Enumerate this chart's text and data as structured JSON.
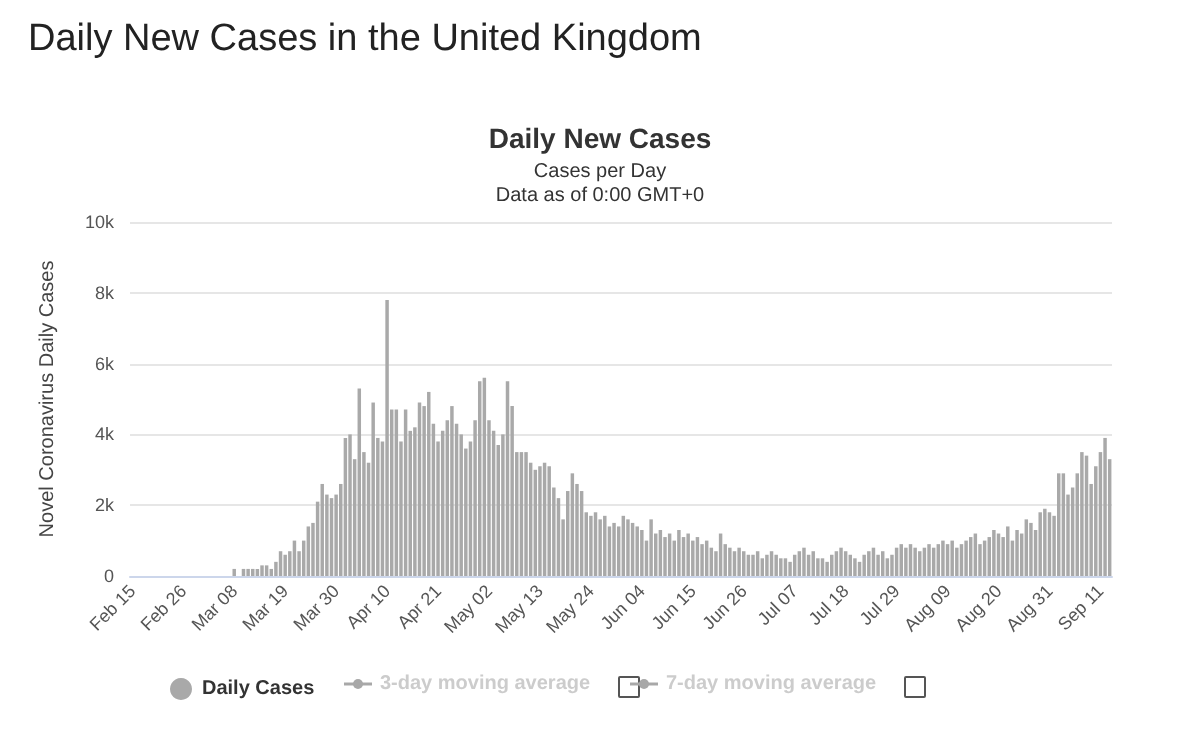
{
  "chart_data": {
    "type": "bar",
    "title": "Daily New Cases in the United Kingdom",
    "subtitle": "Daily New Cases",
    "annotations": [
      "Cases per Day",
      "Data as of 0:00 GMT+0",
      "3-day moving average",
      "7-day moving average"
    ],
    "ylabel": "Novel Coronavirus Daily Cases",
    "categories": [
      "Feb 15",
      null,
      null,
      null,
      null,
      null,
      null,
      null,
      null,
      null,
      null,
      "Feb 26",
      null,
      null,
      null,
      null,
      null,
      null,
      null,
      null,
      null,
      null,
      "Mar 08",
      null,
      null,
      null,
      null,
      null,
      null,
      null,
      null,
      null,
      null,
      "Mar 19",
      null,
      null,
      null,
      null,
      null,
      null,
      null,
      null,
      null,
      null,
      "Mar 30",
      null,
      null,
      null,
      null,
      null,
      null,
      null,
      null,
      null,
      null,
      "Apr 10",
      null,
      null,
      null,
      null,
      null,
      null,
      null,
      null,
      null,
      null,
      "Apr 21",
      null,
      null,
      null,
      null,
      null,
      null,
      null,
      null,
      null,
      null,
      "May 02",
      null,
      null,
      null,
      null,
      null,
      null,
      null,
      null,
      null,
      null,
      "May 13",
      null,
      null,
      null,
      null,
      null,
      null,
      null,
      null,
      null,
      null,
      "May 24",
      null,
      null,
      null,
      null,
      null,
      null,
      null,
      null,
      null,
      null,
      "Jun 04",
      null,
      null,
      null,
      null,
      null,
      null,
      null,
      null,
      null,
      null,
      "Jun 15",
      null,
      null,
      null,
      null,
      null,
      null,
      null,
      null,
      null,
      null,
      "Jun 26",
      null,
      null,
      null,
      null,
      null,
      null,
      null,
      null,
      null,
      null,
      "Jul 07",
      null,
      null,
      null,
      null,
      null,
      null,
      null,
      null,
      null,
      null,
      "Jul 18",
      null,
      null,
      null,
      null,
      null,
      null,
      null,
      null,
      null,
      null,
      "Jul 29",
      null,
      null,
      null,
      null,
      null,
      null,
      null,
      null,
      null,
      null,
      "Aug 09",
      null,
      null,
      null,
      null,
      null,
      null,
      null,
      null,
      null,
      null,
      "Aug 20",
      null,
      null,
      null,
      null,
      null,
      null,
      null,
      null,
      null,
      null,
      "Aug 31",
      null,
      null,
      null,
      null,
      null,
      null,
      null,
      null,
      null,
      null,
      "Sep 11",
      null,
      null
    ],
    "series": [
      {
        "name": "Daily Cases",
        "color": "#a9a9a9",
        "values": [
          0,
          0,
          0,
          0,
          0,
          0,
          0,
          0,
          0,
          0,
          0,
          0,
          0,
          0,
          0,
          0,
          0,
          0,
          0,
          0,
          0,
          0,
          200,
          0,
          200,
          200,
          200,
          200,
          300,
          300,
          200,
          400,
          700,
          600,
          700,
          1000,
          700,
          1000,
          1400,
          1500,
          2100,
          2600,
          2300,
          2200,
          2300,
          2600,
          3900,
          4000,
          3300,
          5300,
          3500,
          3200,
          4900,
          3900,
          3800,
          7800,
          4700,
          4700,
          3800,
          4700,
          4100,
          4200,
          4900,
          4800,
          5200,
          4300,
          3800,
          4100,
          4400,
          4800,
          4300,
          4000,
          3600,
          3800,
          4400,
          5500,
          5600,
          4400,
          4100,
          3700,
          4000,
          5500,
          4800,
          3500,
          3500,
          3500,
          3200,
          3000,
          3100,
          3200,
          3100,
          2500,
          2200,
          1600,
          2400,
          2900,
          2600,
          2400,
          1800,
          1700,
          1800,
          1600,
          1700,
          1400,
          1500,
          1400,
          1700,
          1600,
          1500,
          1400,
          1300,
          1000,
          1600,
          1200,
          1300,
          1100,
          1200,
          1000,
          1300,
          1100,
          1200,
          1000,
          1100,
          900,
          1000,
          800,
          700,
          1200,
          900,
          800,
          700,
          800,
          700,
          600,
          600,
          700,
          500,
          600,
          700,
          600,
          500,
          500,
          400,
          600,
          700,
          800,
          600,
          700,
          500,
          500,
          400,
          600,
          700,
          800,
          700,
          600,
          500,
          400,
          600,
          700,
          800,
          600,
          700,
          500,
          600,
          800,
          900,
          800,
          900,
          800,
          700,
          800,
          900,
          800,
          900,
          1000,
          900,
          1000,
          800,
          900,
          1000,
          1100,
          1200,
          900,
          1000,
          1100,
          1300,
          1200,
          1100,
          1400,
          1000,
          1300,
          1200,
          1600,
          1500,
          1300,
          1800,
          1900,
          1800,
          1700,
          2900,
          2900,
          2300,
          2500,
          2900,
          3500,
          3400,
          2600,
          3100,
          3500,
          3900,
          3300
        ]
      }
    ],
    "ylim": [
      0,
      10000
    ],
    "yticks": [
      0,
      {
        "value": 2000,
        "label": "2k"
      },
      {
        "value": 4000,
        "label": "4k"
      },
      {
        "value": 6000,
        "label": "6k"
      },
      {
        "value": 8000,
        "label": "8k"
      },
      {
        "value": 10000,
        "label": "10k"
      }
    ],
    "grid": "y",
    "legend": "bottom"
  }
}
